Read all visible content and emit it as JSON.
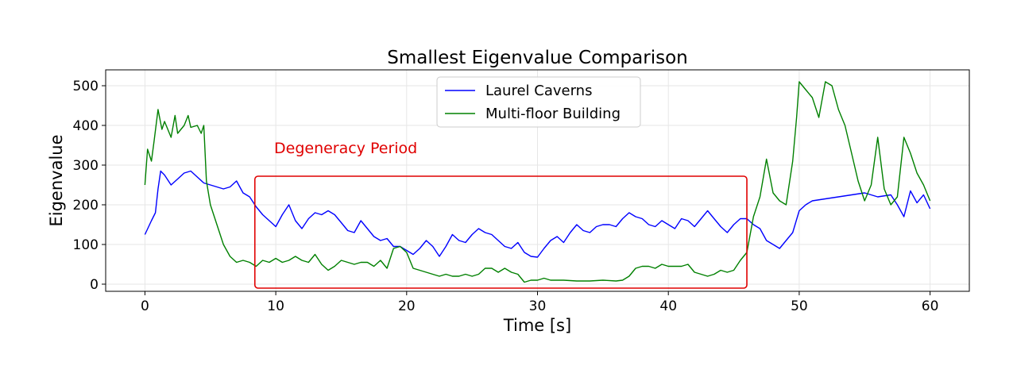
{
  "chart_data": {
    "type": "line",
    "title": "Smallest Eigenvalue Comparison",
    "xlabel": "Time [s]",
    "ylabel": "Eigenvalue",
    "xlim": [
      -3,
      63
    ],
    "ylim": [
      -18,
      540
    ],
    "xticks": [
      0,
      10,
      20,
      30,
      40,
      50,
      60
    ],
    "yticks": [
      0,
      100,
      200,
      300,
      400,
      500
    ],
    "grid": true,
    "legend_position": "top-center",
    "series": [
      {
        "name": "Laurel Caverns",
        "color": "#0000ff",
        "points": [
          [
            0,
            125
          ],
          [
            0.5,
            160
          ],
          [
            0.8,
            180
          ],
          [
            1.0,
            240
          ],
          [
            1.2,
            285
          ],
          [
            1.5,
            275
          ],
          [
            2.0,
            250
          ],
          [
            2.5,
            265
          ],
          [
            3.0,
            280
          ],
          [
            3.5,
            285
          ],
          [
            4.0,
            270
          ],
          [
            4.5,
            255
          ],
          [
            5.0,
            250
          ],
          [
            5.5,
            245
          ],
          [
            6.0,
            240
          ],
          [
            6.5,
            245
          ],
          [
            7.0,
            260
          ],
          [
            7.5,
            230
          ],
          [
            8.0,
            220
          ],
          [
            8.5,
            195
          ],
          [
            9.0,
            175
          ],
          [
            9.5,
            160
          ],
          [
            10.0,
            145
          ],
          [
            10.5,
            175
          ],
          [
            11.0,
            200
          ],
          [
            11.5,
            160
          ],
          [
            12.0,
            140
          ],
          [
            12.5,
            165
          ],
          [
            13.0,
            180
          ],
          [
            13.5,
            175
          ],
          [
            14.0,
            185
          ],
          [
            14.5,
            175
          ],
          [
            15.0,
            155
          ],
          [
            15.5,
            135
          ],
          [
            16.0,
            130
          ],
          [
            16.5,
            160
          ],
          [
            17.0,
            140
          ],
          [
            17.5,
            120
          ],
          [
            18.0,
            110
          ],
          [
            18.5,
            115
          ],
          [
            19.0,
            95
          ],
          [
            19.5,
            95
          ],
          [
            20.0,
            85
          ],
          [
            20.5,
            75
          ],
          [
            21.0,
            90
          ],
          [
            21.5,
            110
          ],
          [
            22.0,
            95
          ],
          [
            22.5,
            70
          ],
          [
            23.0,
            95
          ],
          [
            23.5,
            125
          ],
          [
            24.0,
            110
          ],
          [
            24.5,
            105
          ],
          [
            25.0,
            125
          ],
          [
            25.5,
            140
          ],
          [
            26.0,
            130
          ],
          [
            26.5,
            125
          ],
          [
            27.0,
            110
          ],
          [
            27.5,
            95
          ],
          [
            28.0,
            90
          ],
          [
            28.5,
            105
          ],
          [
            29.0,
            80
          ],
          [
            29.5,
            70
          ],
          [
            30.0,
            68
          ],
          [
            30.5,
            90
          ],
          [
            31.0,
            110
          ],
          [
            31.5,
            120
          ],
          [
            32.0,
            105
          ],
          [
            32.5,
            130
          ],
          [
            33.0,
            150
          ],
          [
            33.5,
            135
          ],
          [
            34.0,
            130
          ],
          [
            34.5,
            145
          ],
          [
            35.0,
            150
          ],
          [
            35.5,
            150
          ],
          [
            36.0,
            145
          ],
          [
            36.5,
            165
          ],
          [
            37.0,
            180
          ],
          [
            37.5,
            170
          ],
          [
            38.0,
            165
          ],
          [
            38.5,
            150
          ],
          [
            39.0,
            145
          ],
          [
            39.5,
            160
          ],
          [
            40.0,
            150
          ],
          [
            40.5,
            140
          ],
          [
            41.0,
            165
          ],
          [
            41.5,
            160
          ],
          [
            42.0,
            145
          ],
          [
            42.5,
            165
          ],
          [
            43.0,
            185
          ],
          [
            43.5,
            165
          ],
          [
            44.0,
            145
          ],
          [
            44.5,
            130
          ],
          [
            45.0,
            150
          ],
          [
            45.5,
            165
          ],
          [
            46.0,
            165
          ],
          [
            46.5,
            150
          ],
          [
            47.0,
            140
          ],
          [
            47.5,
            110
          ],
          [
            48.0,
            100
          ],
          [
            48.5,
            90
          ],
          [
            49.0,
            110
          ],
          [
            49.5,
            130
          ],
          [
            50.0,
            185
          ],
          [
            50.5,
            200
          ],
          [
            51.0,
            210
          ],
          [
            52.0,
            215
          ],
          [
            53.0,
            220
          ],
          [
            54.0,
            225
          ],
          [
            55.0,
            230
          ],
          [
            56.0,
            220
          ],
          [
            57.0,
            225
          ],
          [
            57.5,
            200
          ],
          [
            58.0,
            170
          ],
          [
            58.5,
            235
          ],
          [
            59.0,
            205
          ],
          [
            59.5,
            225
          ],
          [
            60.0,
            190
          ]
        ]
      },
      {
        "name": "Multi-floor Building",
        "color": "#008000",
        "points": [
          [
            0,
            250
          ],
          [
            0.2,
            340
          ],
          [
            0.5,
            310
          ],
          [
            0.7,
            360
          ],
          [
            1.0,
            440
          ],
          [
            1.3,
            390
          ],
          [
            1.5,
            410
          ],
          [
            2.0,
            370
          ],
          [
            2.3,
            425
          ],
          [
            2.5,
            380
          ],
          [
            3.0,
            400
          ],
          [
            3.3,
            425
          ],
          [
            3.5,
            395
          ],
          [
            4.0,
            400
          ],
          [
            4.3,
            380
          ],
          [
            4.5,
            400
          ],
          [
            4.7,
            260
          ],
          [
            5.0,
            200
          ],
          [
            5.5,
            150
          ],
          [
            6.0,
            100
          ],
          [
            6.5,
            70
          ],
          [
            7.0,
            55
          ],
          [
            7.5,
            60
          ],
          [
            8.0,
            55
          ],
          [
            8.5,
            45
          ],
          [
            9.0,
            60
          ],
          [
            9.5,
            55
          ],
          [
            10.0,
            65
          ],
          [
            10.5,
            55
          ],
          [
            11.0,
            60
          ],
          [
            11.5,
            70
          ],
          [
            12.0,
            60
          ],
          [
            12.5,
            55
          ],
          [
            13.0,
            75
          ],
          [
            13.5,
            50
          ],
          [
            14.0,
            35
          ],
          [
            14.5,
            45
          ],
          [
            15.0,
            60
          ],
          [
            15.5,
            55
          ],
          [
            16.0,
            50
          ],
          [
            16.5,
            55
          ],
          [
            17.0,
            55
          ],
          [
            17.5,
            45
          ],
          [
            18.0,
            60
          ],
          [
            18.5,
            40
          ],
          [
            19.0,
            90
          ],
          [
            19.5,
            95
          ],
          [
            20.0,
            80
          ],
          [
            20.5,
            40
          ],
          [
            21.0,
            35
          ],
          [
            21.5,
            30
          ],
          [
            22.0,
            25
          ],
          [
            22.5,
            20
          ],
          [
            23.0,
            25
          ],
          [
            23.5,
            20
          ],
          [
            24.0,
            20
          ],
          [
            24.5,
            25
          ],
          [
            25.0,
            20
          ],
          [
            25.5,
            25
          ],
          [
            26.0,
            40
          ],
          [
            26.5,
            40
          ],
          [
            27.0,
            30
          ],
          [
            27.5,
            40
          ],
          [
            28.0,
            30
          ],
          [
            28.5,
            25
          ],
          [
            29.0,
            5
          ],
          [
            29.5,
            10
          ],
          [
            30.0,
            10
          ],
          [
            30.5,
            15
          ],
          [
            31.0,
            10
          ],
          [
            32.0,
            10
          ],
          [
            33.0,
            8
          ],
          [
            34.0,
            8
          ],
          [
            35.0,
            10
          ],
          [
            36.0,
            8
          ],
          [
            36.5,
            10
          ],
          [
            37.0,
            20
          ],
          [
            37.5,
            40
          ],
          [
            38.0,
            45
          ],
          [
            38.5,
            45
          ],
          [
            39.0,
            40
          ],
          [
            39.5,
            50
          ],
          [
            40.0,
            45
          ],
          [
            40.5,
            45
          ],
          [
            41.0,
            45
          ],
          [
            41.5,
            50
          ],
          [
            42.0,
            30
          ],
          [
            42.5,
            25
          ],
          [
            43.0,
            20
          ],
          [
            43.5,
            25
          ],
          [
            44.0,
            35
          ],
          [
            44.5,
            30
          ],
          [
            45.0,
            35
          ],
          [
            45.5,
            60
          ],
          [
            46.0,
            80
          ],
          [
            46.5,
            170
          ],
          [
            47.0,
            220
          ],
          [
            47.5,
            315
          ],
          [
            48.0,
            230
          ],
          [
            48.5,
            210
          ],
          [
            49.0,
            200
          ],
          [
            49.5,
            310
          ],
          [
            49.8,
            420
          ],
          [
            50.0,
            510
          ],
          [
            50.5,
            490
          ],
          [
            51.0,
            470
          ],
          [
            51.5,
            420
          ],
          [
            52.0,
            510
          ],
          [
            52.5,
            500
          ],
          [
            53.0,
            440
          ],
          [
            53.5,
            400
          ],
          [
            54.0,
            330
          ],
          [
            54.5,
            260
          ],
          [
            55.0,
            210
          ],
          [
            55.5,
            250
          ],
          [
            56.0,
            370
          ],
          [
            56.5,
            240
          ],
          [
            57.0,
            200
          ],
          [
            57.5,
            220
          ],
          [
            58.0,
            370
          ],
          [
            58.5,
            330
          ],
          [
            59.0,
            280
          ],
          [
            59.5,
            250
          ],
          [
            60.0,
            210
          ]
        ]
      }
    ],
    "annotations": [
      {
        "text": "Degeneracy Period",
        "color": "#e00000",
        "box_x": [
          8.4,
          46.0
        ],
        "box_y": [
          -10,
          272
        ]
      }
    ]
  }
}
